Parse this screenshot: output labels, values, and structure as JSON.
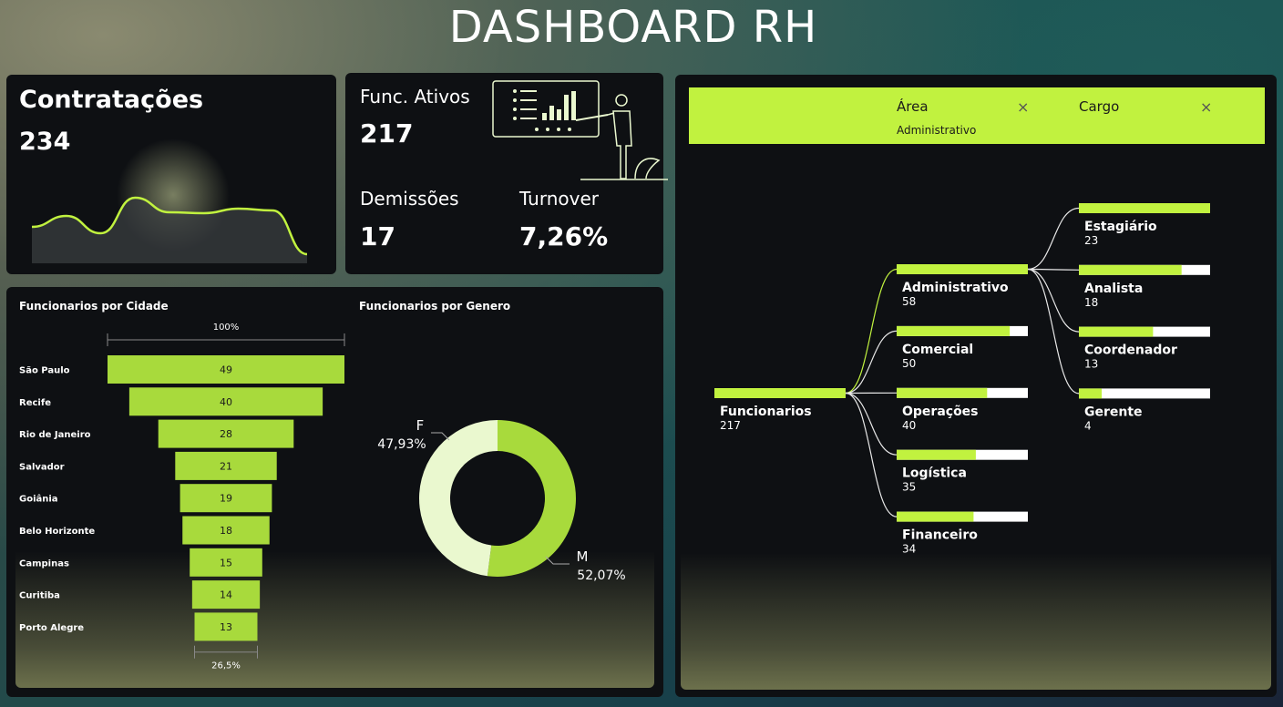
{
  "title": "DASHBOARD RH",
  "kpis": {
    "contratacoes_label": "Contratações",
    "contratacoes_value": "234",
    "ativos_label": "Func. Ativos",
    "ativos_value": "217",
    "demissoes_label": "Demissões",
    "demissoes_value": "17",
    "turnover_label": "Turnover",
    "turnover_value": "7,26%"
  },
  "colors": {
    "accent": "#c1f23f",
    "bar": "#a8da3c",
    "donut_light": "#eaf8cf",
    "card": "#0e1013"
  },
  "filters": {
    "area_label": "Área",
    "area_value": "Administrativo",
    "cargo_label": "Cargo",
    "clear_icon": "×"
  },
  "chart_data": [
    {
      "type": "area",
      "title": "",
      "values": [
        40,
        52,
        33,
        72,
        56,
        55,
        60,
        58,
        10
      ],
      "ylim": [
        0,
        100
      ]
    },
    {
      "type": "bar",
      "title": "Funcionarios por Cidade",
      "top_label": "100%",
      "bottom_label": "26,5%",
      "categories": [
        "São Paulo",
        "Recife",
        "Rio de Janeiro",
        "Salvador",
        "Goiânia",
        "Belo Horizonte",
        "Campinas",
        "Curitiba",
        "Porto Alegre"
      ],
      "values": [
        49,
        40,
        28,
        21,
        19,
        18,
        15,
        14,
        13
      ]
    },
    {
      "type": "pie",
      "title": "Funcionarios por Genero",
      "categories": [
        "F",
        "M"
      ],
      "values": [
        47.93,
        52.07
      ],
      "labels": [
        "47,93%",
        "52,07%"
      ]
    },
    {
      "type": "bar",
      "title": "",
      "root": {
        "label": "Funcionarios",
        "value": 217
      },
      "areas": [
        {
          "label": "Administrativo",
          "value": 58
        },
        {
          "label": "Comercial",
          "value": 50
        },
        {
          "label": "Operações",
          "value": 40
        },
        {
          "label": "Logística",
          "value": 35
        },
        {
          "label": "Financeiro",
          "value": 34
        }
      ],
      "cargos": [
        {
          "label": "Estagiário",
          "value": 23
        },
        {
          "label": "Analista",
          "value": 18
        },
        {
          "label": "Coordenador",
          "value": 13
        },
        {
          "label": "Gerente",
          "value": 4
        }
      ]
    }
  ]
}
